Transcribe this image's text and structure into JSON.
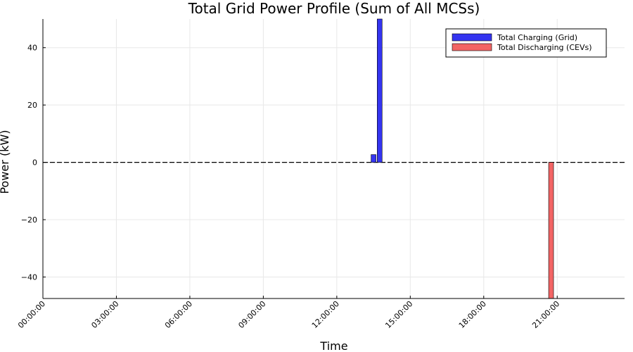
{
  "chart_data": {
    "type": "bar",
    "title": "Total Grid Power Profile (Sum of All MCSs)",
    "xlabel": "Time",
    "ylabel": "Power (kW)",
    "x_unit": "hours",
    "xlim": [
      0,
      23.75
    ],
    "ylim": [
      -47.5,
      50
    ],
    "x_ticks": [
      {
        "value": 0,
        "label": "00:00:00"
      },
      {
        "value": 3,
        "label": "03:00:00"
      },
      {
        "value": 6,
        "label": "06:00:00"
      },
      {
        "value": 9,
        "label": "09:00:00"
      },
      {
        "value": 12,
        "label": "12:00:00"
      },
      {
        "value": 15,
        "label": "15:00:00"
      },
      {
        "value": 18,
        "label": "18:00:00"
      },
      {
        "value": 21,
        "label": "21:00:00"
      }
    ],
    "y_ticks": [
      {
        "value": 40,
        "label": "40"
      },
      {
        "value": 20,
        "label": "20"
      },
      {
        "value": 0,
        "label": "0"
      },
      {
        "value": -20,
        "label": "−20"
      },
      {
        "value": -40,
        "label": "−40"
      }
    ],
    "bar_width_hours": 0.2,
    "grid": true,
    "legend_position": "top-right",
    "zero_line": true,
    "series": [
      {
        "name": "Total Charging (Grid)",
        "color": "#3434f0",
        "points": [
          {
            "x": 13.5,
            "y": 2.7
          },
          {
            "x": 13.75,
            "y": 50
          }
        ]
      },
      {
        "name": "Total Discharging (CEVs)",
        "color": "#f26464",
        "points": [
          {
            "x": 20.75,
            "y": -47.5
          }
        ]
      }
    ]
  }
}
